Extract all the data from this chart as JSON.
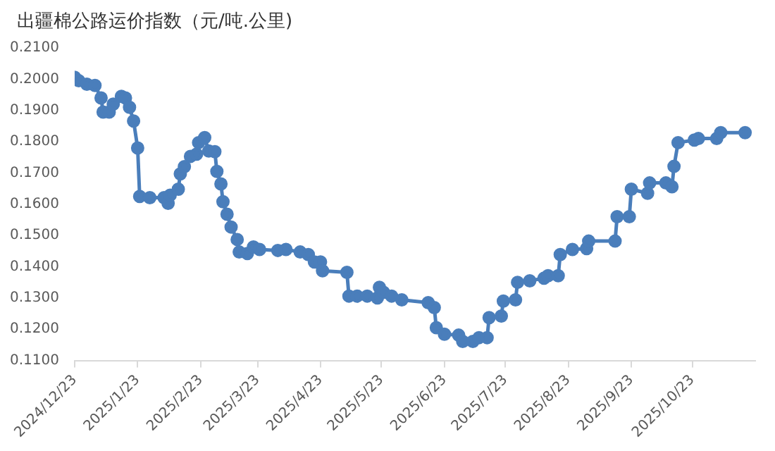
{
  "chart_data": {
    "type": "line",
    "title": "出疆棉公路运价指数（元/吨.公里)",
    "marker": "circle",
    "grid": false,
    "legend": false,
    "x": [
      "2024-12-23",
      "2024-12-25",
      "2024-12-29",
      "2025-01-02",
      "2025-01-05",
      "2025-01-06",
      "2025-01-09",
      "2025-01-11",
      "2025-01-15",
      "2025-01-17",
      "2025-01-19",
      "2025-01-21",
      "2025-01-23",
      "2025-01-24",
      "2025-01-29",
      "2025-02-05",
      "2025-02-07",
      "2025-02-08",
      "2025-02-12",
      "2025-02-13",
      "2025-02-15",
      "2025-02-18",
      "2025-02-21",
      "2025-02-22",
      "2025-02-25",
      "2025-02-27",
      "2025-03-02",
      "2025-03-03",
      "2025-03-05",
      "2025-03-06",
      "2025-03-08",
      "2025-03-10",
      "2025-03-13",
      "2025-03-14",
      "2025-03-18",
      "2025-03-21",
      "2025-03-24",
      "2025-04-02",
      "2025-04-06",
      "2025-04-13",
      "2025-04-17",
      "2025-04-20",
      "2025-04-23",
      "2025-04-24",
      "2025-05-06",
      "2025-05-07",
      "2025-05-11",
      "2025-05-16",
      "2025-05-21",
      "2025-05-22",
      "2025-05-24",
      "2025-05-28",
      "2025-06-02",
      "2025-06-15",
      "2025-06-18",
      "2025-06-19",
      "2025-06-23",
      "2025-06-30",
      "2025-07-02",
      "2025-07-07",
      "2025-07-10",
      "2025-07-14",
      "2025-07-15",
      "2025-07-21",
      "2025-07-22",
      "2025-07-28",
      "2025-07-29",
      "2025-08-04",
      "2025-08-11",
      "2025-08-13",
      "2025-08-18",
      "2025-08-19",
      "2025-08-25",
      "2025-09-01",
      "2025-09-02",
      "2025-09-15",
      "2025-09-16",
      "2025-09-22",
      "2025-09-23",
      "2025-10-01",
      "2025-10-02",
      "2025-10-10",
      "2025-10-13",
      "2025-10-14",
      "2025-10-16",
      "2025-10-24",
      "2025-10-26",
      "2025-11-04",
      "2025-11-06",
      "2025-11-18"
    ],
    "series": [
      {
        "color": "#4a7ebb",
        "values": [
          0.2006,
          0.1995,
          0.1984,
          0.198,
          0.194,
          0.1895,
          0.1895,
          0.192,
          0.1945,
          0.194,
          0.191,
          0.1866,
          0.178,
          0.1625,
          0.1621,
          0.1621,
          0.1603,
          0.1629,
          0.1648,
          0.1697,
          0.172,
          0.1753,
          0.176,
          0.1797,
          0.1813,
          0.177,
          0.1768,
          0.1705,
          0.1665,
          0.1608,
          0.1568,
          0.1527,
          0.1487,
          0.1447,
          0.1442,
          0.1463,
          0.1455,
          0.1452,
          0.1455,
          0.1447,
          0.1439,
          0.1415,
          0.1415,
          0.1387,
          0.1382,
          0.1306,
          0.1306,
          0.1306,
          0.13,
          0.1334,
          0.1318,
          0.1306,
          0.1294,
          0.1285,
          0.1269,
          0.1205,
          0.1184,
          0.1181,
          0.1161,
          0.1161,
          0.1173,
          0.1173,
          0.1237,
          0.1242,
          0.129,
          0.1294,
          0.135,
          0.1355,
          0.1363,
          0.1371,
          0.1371,
          0.1439,
          0.1455,
          0.1458,
          0.1482,
          0.1482,
          0.156,
          0.156,
          0.1648,
          0.1635,
          0.1668,
          0.1668,
          0.1656,
          0.1721,
          0.1797,
          0.1805,
          0.181,
          0.181,
          0.1829,
          0.1829
        ]
      }
    ],
    "xlim": [
      "2024-12-23",
      "2025-11-23"
    ],
    "xticks": [
      {
        "value": "2024-12-23",
        "label": "2024/12/23"
      },
      {
        "value": "2025-01-23",
        "label": "2025/1/23"
      },
      {
        "value": "2025-02-23",
        "label": "2025/2/23"
      },
      {
        "value": "2025-03-23",
        "label": "2025/3/23"
      },
      {
        "value": "2025-04-23",
        "label": "2025/4/23"
      },
      {
        "value": "2025-05-23",
        "label": "2025/5/23"
      },
      {
        "value": "2025-06-23",
        "label": "2025/6/23"
      },
      {
        "value": "2025-07-23",
        "label": "2025/7/23"
      },
      {
        "value": "2025-08-23",
        "label": "2025/8/23"
      },
      {
        "value": "2025-09-23",
        "label": "2025/9/23"
      },
      {
        "value": "2025-10-23",
        "label": "2025/10/23"
      }
    ],
    "ylim": [
      0.11,
      0.21
    ],
    "yticks": [
      {
        "value": 0.11,
        "label": "0.1100"
      },
      {
        "value": 0.12,
        "label": "0.1200"
      },
      {
        "value": 0.13,
        "label": "0.1300"
      },
      {
        "value": 0.14,
        "label": "0.1400"
      },
      {
        "value": 0.15,
        "label": "0.1500"
      },
      {
        "value": 0.16,
        "label": "0.1600"
      },
      {
        "value": 0.17,
        "label": "0.1700"
      },
      {
        "value": 0.18,
        "label": "0.1800"
      },
      {
        "value": 0.19,
        "label": "0.1900"
      },
      {
        "value": 0.2,
        "label": "0.2000"
      },
      {
        "value": 0.21,
        "label": "0.2100"
      }
    ]
  }
}
